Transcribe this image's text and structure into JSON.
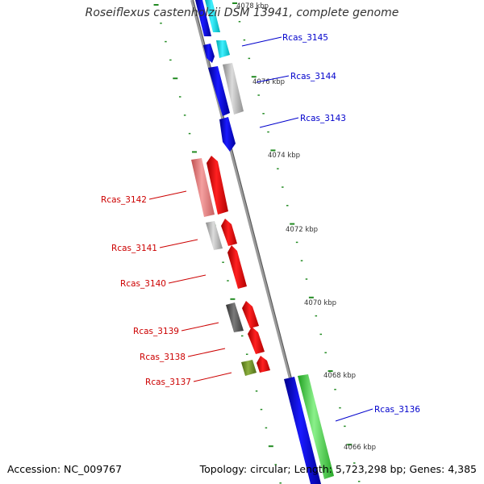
{
  "title": "Roseiflexus castenholzii DSM 13941, complete genome",
  "accession": "Accession: NC_009767",
  "stats": "Topology: circular; Length: 5,723,298 bp; Genes: 4,385",
  "colors": {
    "forward_cds": "#0000ee",
    "reverse_cds": "#ee0000",
    "light_blue": "#00e5ee",
    "gray": "#bdbdbd",
    "dark_gray": "#666666",
    "pink": "#ee8080",
    "olive": "#6b8e23",
    "green": "#44dd44",
    "backbone": "#888888",
    "ticks": "#228b22"
  },
  "ruler": [
    {
      "label": "4078 kbp"
    },
    {
      "label": "4076 kbp"
    },
    {
      "label": "4074 kbp"
    },
    {
      "label": "4072 kbp"
    },
    {
      "label": "4070 kbp"
    },
    {
      "label": "4068 kbp"
    },
    {
      "label": "4066 kbp"
    }
  ],
  "labels": [
    {
      "text": "Rcas_3145",
      "strand": "forward"
    },
    {
      "text": "Rcas_3144",
      "strand": "forward"
    },
    {
      "text": "Rcas_3143",
      "strand": "forward"
    },
    {
      "text": "Rcas_3142",
      "strand": "reverse"
    },
    {
      "text": "Rcas_3141",
      "strand": "reverse"
    },
    {
      "text": "Rcas_3140",
      "strand": "reverse"
    },
    {
      "text": "Rcas_3139",
      "strand": "reverse"
    },
    {
      "text": "Rcas_3138",
      "strand": "reverse"
    },
    {
      "text": "Rcas_3137",
      "strand": "reverse"
    },
    {
      "text": "Rcas_3136",
      "strand": "forward"
    }
  ]
}
